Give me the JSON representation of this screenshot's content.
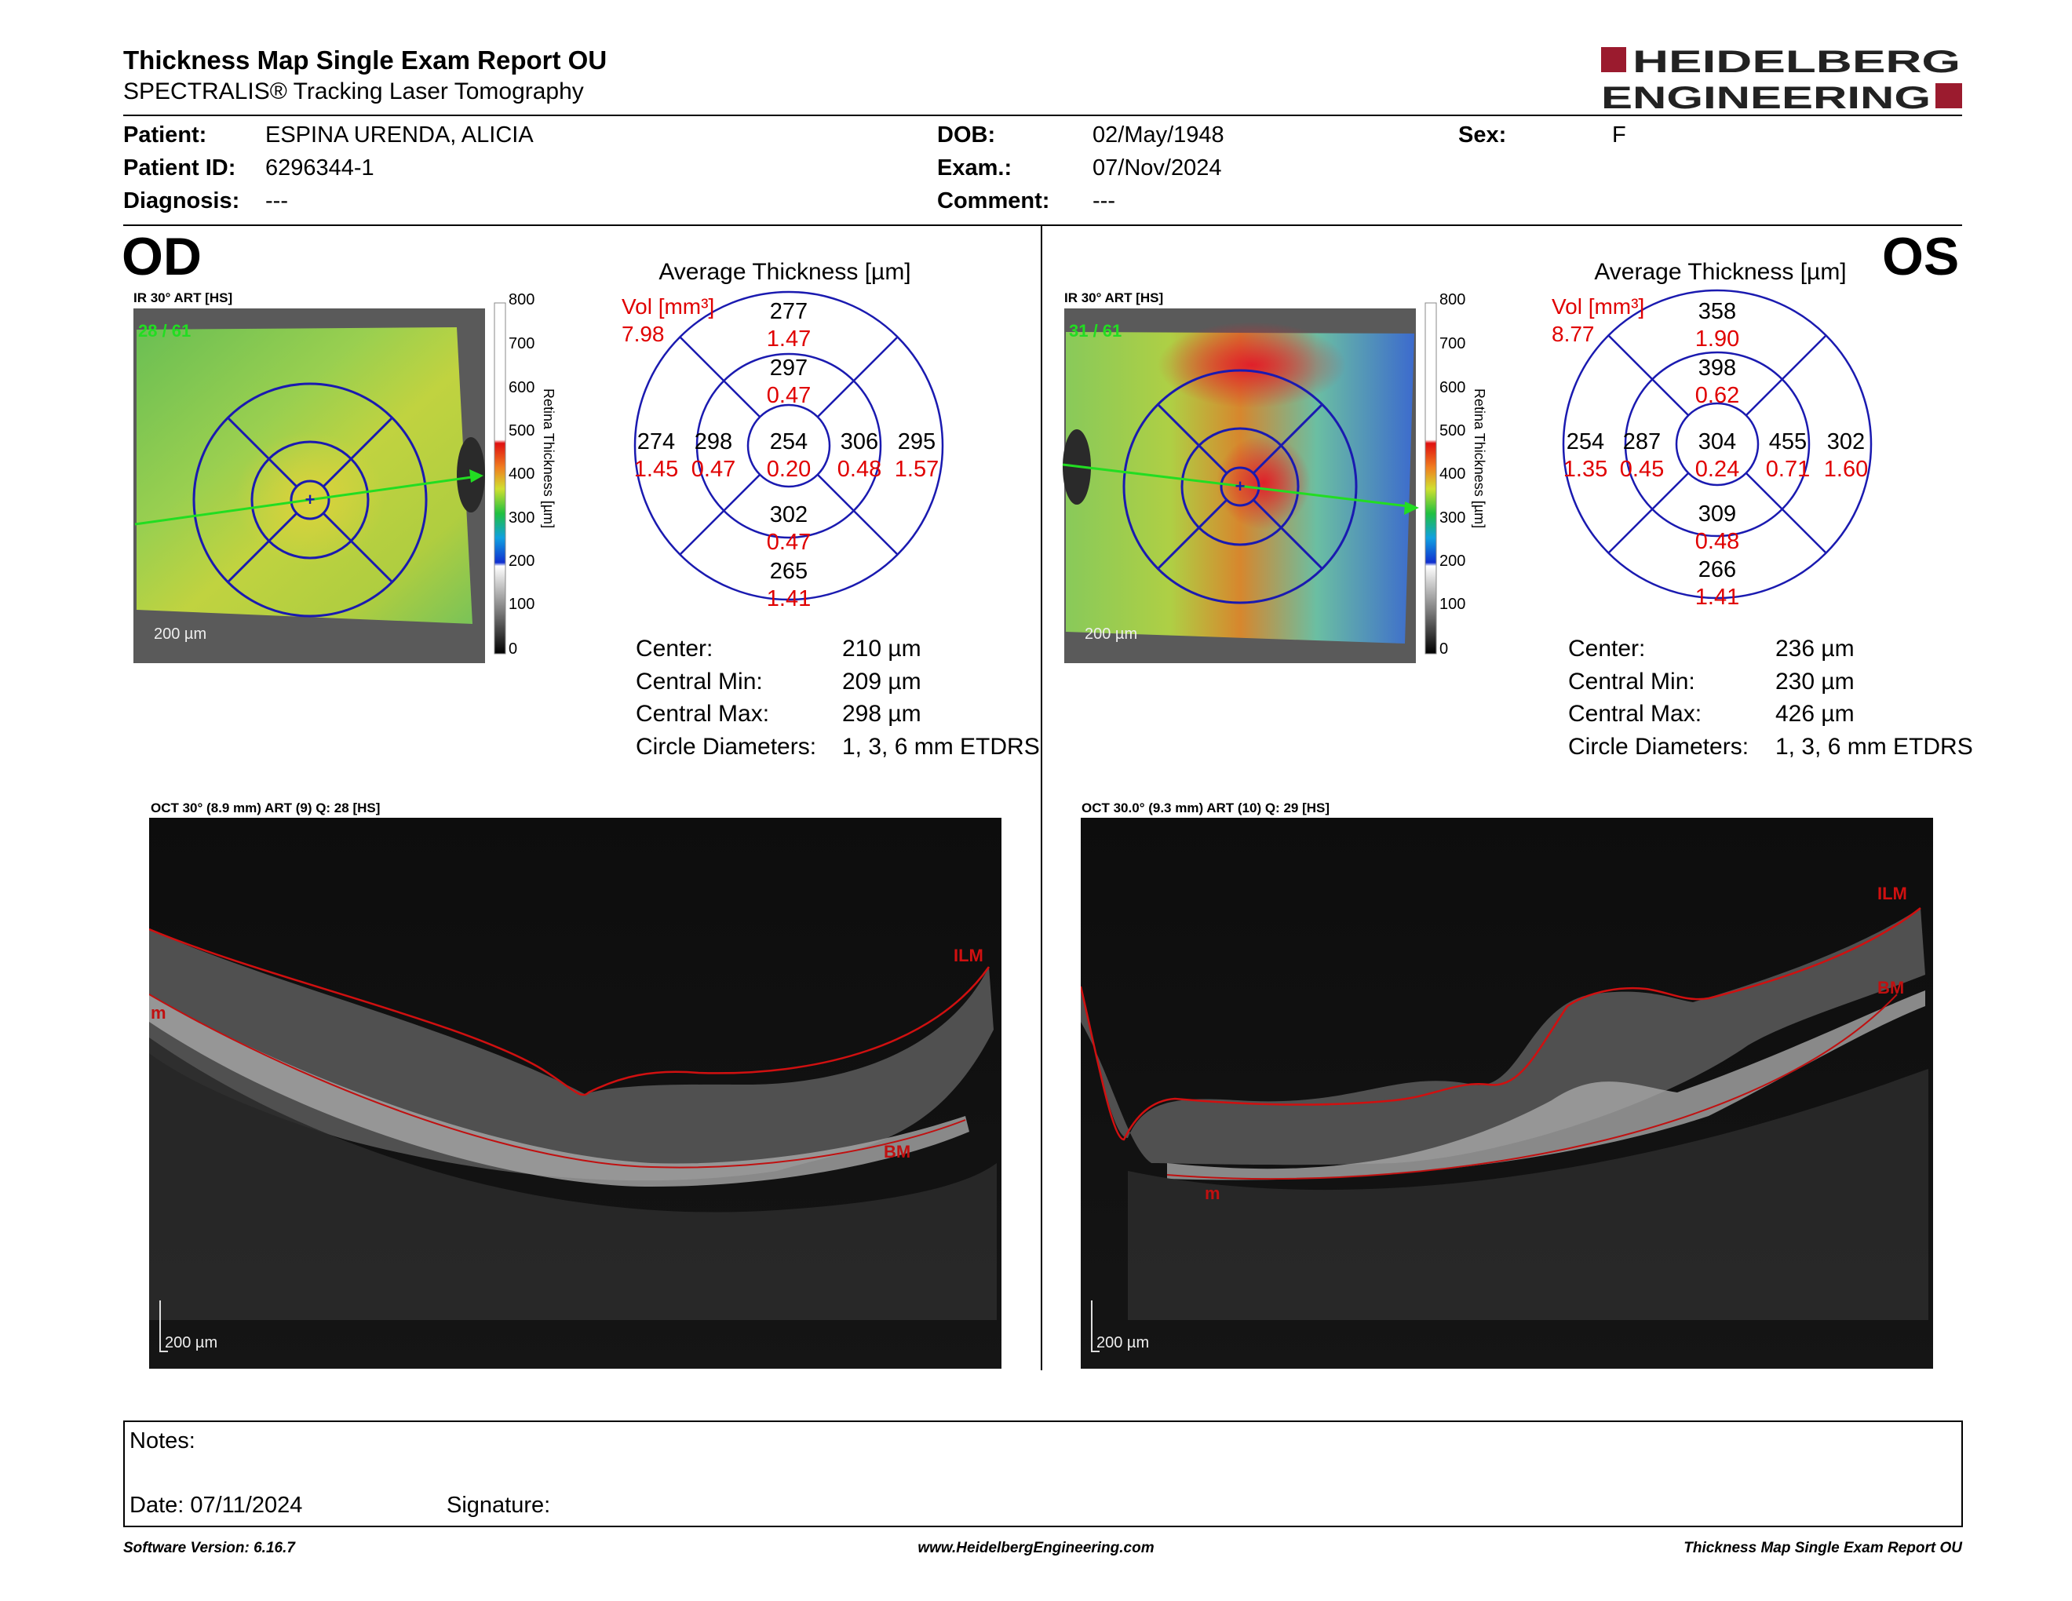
{
  "report": {
    "title": "Thickness Map Single Exam Report OU",
    "subtitle": "SPECTRALIS® Tracking Laser Tomography"
  },
  "logo": {
    "line1": "HEIDELBERG",
    "line2": "ENGINEERING",
    "color": "#9b1b2e"
  },
  "patient": {
    "patient_label": "Patient:",
    "patient_value": "ESPINA URENDA, ALICIA",
    "id_label": "Patient ID:",
    "id_value": "6296344-1",
    "diagnosis_label": "Diagnosis:",
    "diagnosis_value": "---",
    "dob_label": "DOB:",
    "dob_value": "02/May/1948",
    "exam_label": "Exam.:",
    "exam_value": "07/Nov/2024",
    "comment_label": "Comment:",
    "comment_value": "---",
    "sex_label": "Sex:",
    "sex_value": "F"
  },
  "scale": {
    "ticks": [
      "800",
      "700",
      "600",
      "500",
      "400",
      "300",
      "200",
      "100",
      "0"
    ],
    "title": "Retina   Thickness [µm]"
  },
  "od": {
    "eye": "OD",
    "ir_label": "IR 30° ART [HS]",
    "frame_count": "28 / 61",
    "scalebar": "200 µm",
    "avg_title": "Average Thickness [µm]",
    "vol_label": "Vol [mm³]",
    "vol_value": "7.98",
    "sectors": {
      "outer_sup_t": "277",
      "outer_sup_v": "1.47",
      "inner_sup_t": "297",
      "inner_sup_v": "0.47",
      "outer_left_t": "274",
      "outer_left_v": "1.45",
      "inner_left_t": "298",
      "inner_left_v": "0.47",
      "center_t": "254",
      "center_v": "0.20",
      "inner_right_t": "306",
      "inner_right_v": "0.48",
      "outer_right_t": "295",
      "outer_right_v": "1.57",
      "inner_inf_t": "302",
      "inner_inf_v": "0.47",
      "outer_inf_t": "265",
      "outer_inf_v": "1.41"
    },
    "stats": {
      "center_label": "Center:",
      "center_value": "210 µm",
      "min_label": "Central Min:",
      "min_value": "209 µm",
      "max_label": "Central Max:",
      "max_value": "298 µm",
      "diam_label": "Circle Diameters:",
      "diam_value": "1, 3, 6 mm ETDRS"
    },
    "oct_label": "OCT 30° (8.9 mm) ART (9) Q: 28 [HS]",
    "oct_scalebar": "200 µm",
    "oct_ilm": "ILM",
    "oct_bm": "BM",
    "oct_m": "m"
  },
  "os": {
    "eye": "OS",
    "ir_label": "IR 30° ART [HS]",
    "frame_count": "31 / 61",
    "scalebar": "200 µm",
    "avg_title": "Average Thickness [µm]",
    "vol_label": "Vol [mm³]",
    "vol_value": "8.77",
    "sectors": {
      "outer_sup_t": "358",
      "outer_sup_v": "1.90",
      "inner_sup_t": "398",
      "inner_sup_v": "0.62",
      "outer_left_t": "254",
      "outer_left_v": "1.35",
      "inner_left_t": "287",
      "inner_left_v": "0.45",
      "center_t": "304",
      "center_v": "0.24",
      "inner_right_t": "455",
      "inner_right_v": "0.71",
      "outer_right_t": "302",
      "outer_right_v": "1.60",
      "inner_inf_t": "309",
      "inner_inf_v": "0.48",
      "outer_inf_t": "266",
      "outer_inf_v": "1.41"
    },
    "stats": {
      "center_label": "Center:",
      "center_value": "236 µm",
      "min_label": "Central Min:",
      "min_value": "230 µm",
      "max_label": "Central Max:",
      "max_value": "426 µm",
      "diam_label": "Circle Diameters:",
      "diam_value": "1, 3, 6 mm ETDRS"
    },
    "oct_label": "OCT 30.0° (9.3 mm) ART (10) Q: 29 [HS]",
    "oct_scalebar": "200 µm",
    "oct_ilm": "ILM",
    "oct_bm": "BM",
    "oct_m": "m"
  },
  "notes": {
    "notes_label": "Notes:",
    "date_label": "Date: 07/11/2024",
    "signature_label": "Signature:"
  },
  "footer": {
    "version": "Software Version: 6.16.7",
    "website": "www.HeidelbergEngineering.com",
    "report_name": "Thickness Map Single Exam Report OU"
  },
  "colors": {
    "value_red": "#e00000",
    "grid_blue": "#1a1ab0",
    "segment_red": "#d01010",
    "scan_green": "#22dd22"
  }
}
